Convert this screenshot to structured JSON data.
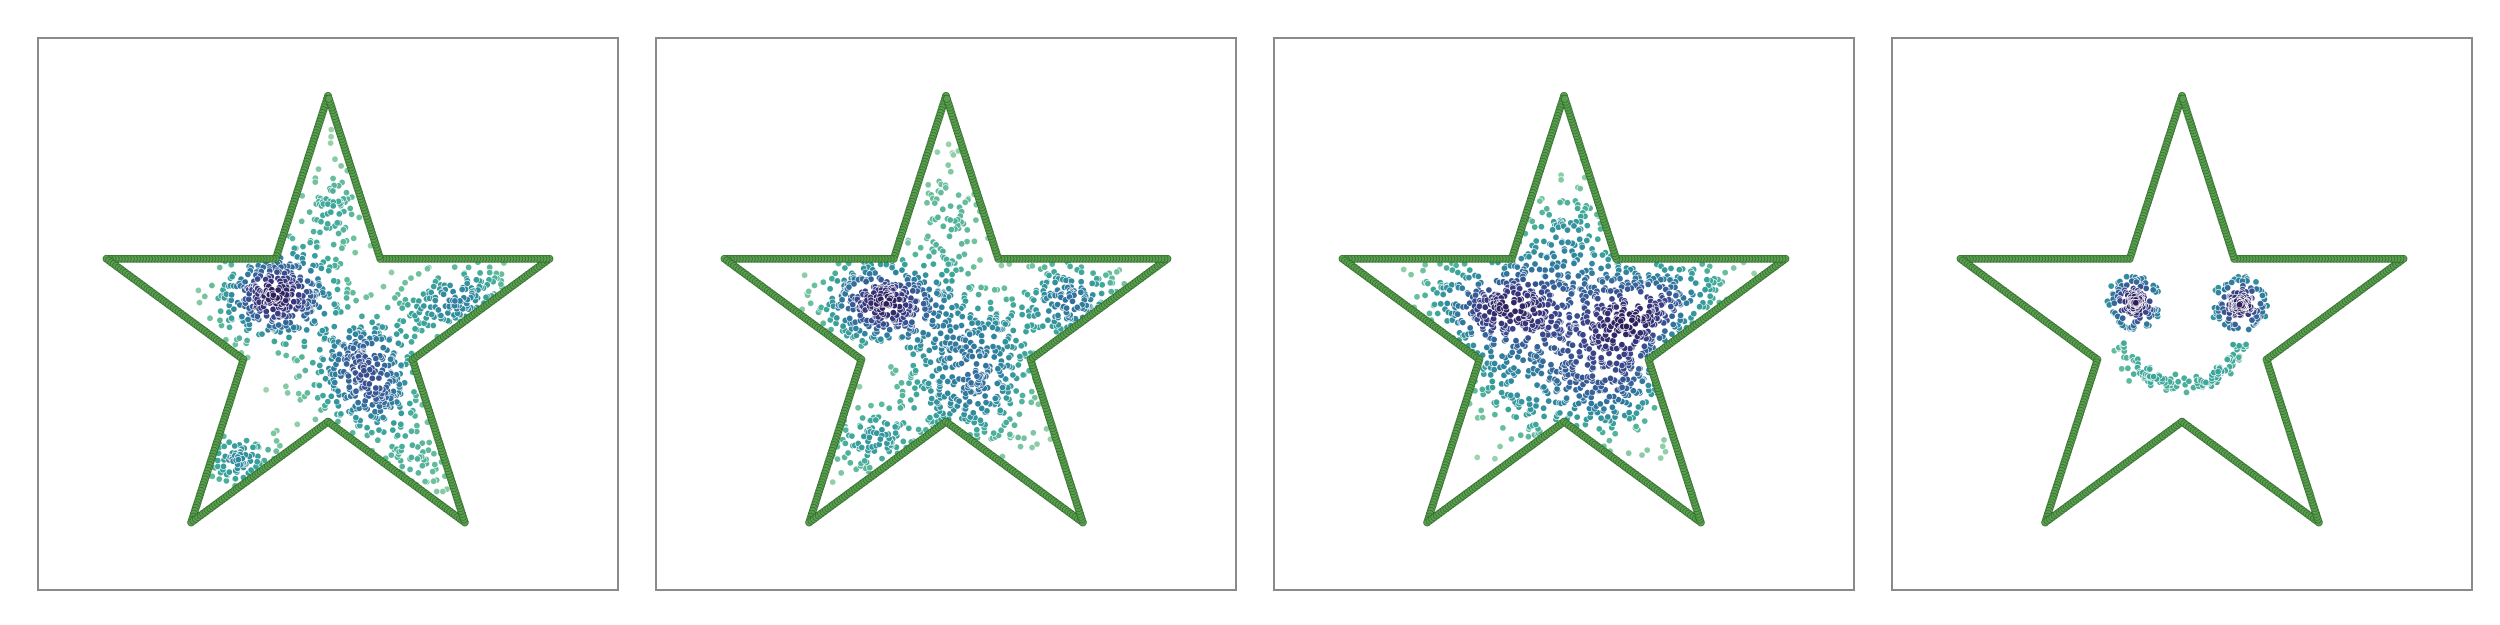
{
  "figure": {
    "colors": {
      "outline": "#5a9e4f",
      "outline_edge": "#2f6b2a",
      "frame": "#8a8a8a",
      "background": "#ffffff",
      "colormap": [
        "#2d1e5a",
        "#3b3f86",
        "#34649a",
        "#2f869f",
        "#3aa59a",
        "#6cc09c",
        "#a9d8b0"
      ]
    }
  },
  "chart_data": [
    {
      "type": "scatter",
      "title": "",
      "xlabel": "",
      "ylabel": "",
      "xlim": [
        -1.25,
        1.25
      ],
      "ylim": [
        -1.1,
        1.25
      ],
      "grid": false,
      "outline": "star",
      "clusters": [
        {
          "center": [
            -0.22,
            0.15
          ],
          "spread": [
            0.14,
            0.1
          ],
          "count": 380,
          "shape": "blob"
        },
        {
          "center": [
            0.18,
            -0.18
          ],
          "spread": [
            0.14,
            0.15
          ],
          "count": 360,
          "shape": "blob"
        },
        {
          "center": [
            0.62,
            0.12
          ],
          "spread": [
            0.14,
            0.08
          ],
          "count": 150,
          "shape": "blob"
        },
        {
          "center": [
            -0.38,
            -0.55
          ],
          "spread": [
            0.15,
            0.05
          ],
          "count": 90,
          "shape": "blob"
        },
        {
          "center": [
            0.0,
            0.55
          ],
          "spread": [
            0.08,
            0.18
          ],
          "count": 90,
          "shape": "blob"
        },
        {
          "center": [
            0.4,
            -0.55
          ],
          "spread": [
            0.1,
            0.1
          ],
          "count": 60,
          "shape": "blob"
        }
      ]
    },
    {
      "type": "scatter",
      "title": "",
      "xlabel": "",
      "ylabel": "",
      "xlim": [
        -1.25,
        1.25
      ],
      "ylim": [
        -1.1,
        1.25
      ],
      "grid": false,
      "outline": "star",
      "clusters": [
        {
          "center": [
            -0.26,
            0.12
          ],
          "spread": [
            0.15,
            0.1
          ],
          "count": 360,
          "shape": "blob"
        },
        {
          "center": [
            0.12,
            -0.2
          ],
          "spread": [
            0.17,
            0.18
          ],
          "count": 400,
          "shape": "blob"
        },
        {
          "center": [
            0.55,
            0.1
          ],
          "spread": [
            0.15,
            0.09
          ],
          "count": 170,
          "shape": "blob"
        },
        {
          "center": [
            -0.3,
            -0.45
          ],
          "spread": [
            0.17,
            0.1
          ],
          "count": 110,
          "shape": "blob"
        },
        {
          "center": [
            0.02,
            0.48
          ],
          "spread": [
            0.09,
            0.17
          ],
          "count": 90,
          "shape": "blob"
        }
      ]
    },
    {
      "type": "scatter",
      "title": "",
      "xlabel": "",
      "ylabel": "",
      "xlim": [
        -1.25,
        1.25
      ],
      "ylim": [
        -1.1,
        1.25
      ],
      "grid": false,
      "outline": "star",
      "clusters": [
        {
          "center": [
            -0.27,
            0.1
          ],
          "spread": [
            0.2,
            0.14
          ],
          "count": 380,
          "shape": "blob"
        },
        {
          "center": [
            0.38,
            0.1
          ],
          "spread": [
            0.22,
            0.16
          ],
          "count": 340,
          "shape": "blob"
        },
        {
          "center": [
            0.05,
            -0.22
          ],
          "spread": [
            0.28,
            0.18
          ],
          "count": 420,
          "shape": "blob"
        },
        {
          "center": [
            0.02,
            0.42
          ],
          "spread": [
            0.14,
            0.12
          ],
          "count": 100,
          "shape": "blob"
        }
      ]
    },
    {
      "type": "scatter",
      "title": "",
      "xlabel": "",
      "ylabel": "",
      "xlim": [
        -1.25,
        1.25
      ],
      "ylim": [
        -1.1,
        1.25
      ],
      "grid": false,
      "outline": "star",
      "clusters": [
        {
          "center": [
            -0.2,
            0.12
          ],
          "spread": [
            0.03,
            0.03
          ],
          "count": 110,
          "shape": "blob"
        },
        {
          "center": [
            0.25,
            0.12
          ],
          "spread": [
            0.03,
            0.03
          ],
          "count": 110,
          "shape": "blob"
        },
        {
          "center": [
            -0.2,
            0.12
          ],
          "radius": 0.1,
          "count": 60,
          "shape": "ring"
        },
        {
          "center": [
            0.25,
            0.12
          ],
          "radius": 0.1,
          "count": 60,
          "shape": "ring"
        },
        {
          "center": [
            0.0,
            0.05
          ],
          "radius": 0.28,
          "arc_deg": [
            200,
            340
          ],
          "count": 130,
          "shape": "arc"
        }
      ]
    }
  ]
}
